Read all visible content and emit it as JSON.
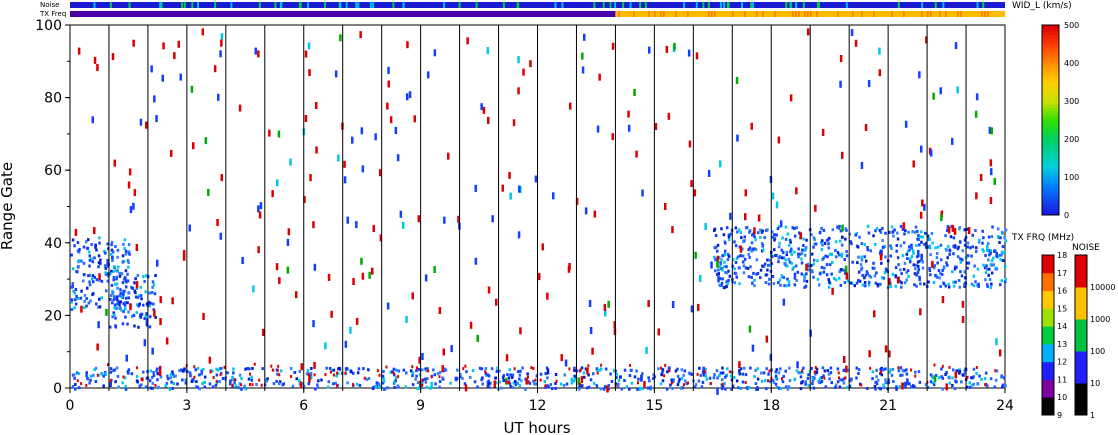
{
  "chart_data": {
    "type": "heatmap",
    "xlabel": "UT hours",
    "ylabel": "Range Gate",
    "xlim": [
      0,
      24
    ],
    "ylim": [
      0,
      100
    ],
    "x_ticks": [
      "0",
      "3",
      "6",
      "9",
      "12",
      "15",
      "18",
      "21",
      "24"
    ],
    "y_ticks": [
      "0",
      "20",
      "40",
      "60",
      "80",
      "100"
    ],
    "hour_gridlines": [
      1,
      2,
      3,
      4,
      5,
      6,
      7,
      8,
      9,
      10,
      11,
      12,
      13,
      14,
      15,
      16,
      17,
      18,
      19,
      20,
      21,
      22,
      23
    ],
    "strip_labels": {
      "noise": "Noise",
      "txfreq": "TX Freq"
    },
    "txfreq_change_hour": 14,
    "txfreq_colors": {
      "before": "#4a00a8",
      "after": "#ffbb00"
    },
    "scatter_regions": [
      {
        "x": [
          0,
          1.5
        ],
        "y": [
          22,
          42
        ],
        "color": "#1040ff",
        "density": "high"
      },
      {
        "x": [
          1,
          2.2
        ],
        "y": [
          17,
          32
        ],
        "color": "#1040ff",
        "density": "high"
      },
      {
        "x": [
          0,
          24
        ],
        "y": [
          0,
          6
        ],
        "color": "#1040ff",
        "density": "high"
      },
      {
        "x": [
          16.5,
          24
        ],
        "y": [
          28,
          45
        ],
        "color": "#1040ff",
        "density": "high"
      },
      {
        "x": [
          0,
          24
        ],
        "y": [
          0,
          100
        ],
        "color": "#dd0000",
        "density": "sparse"
      }
    ],
    "colorbars": [
      {
        "title": "WID_L (km/s)",
        "ticks": [
          "0",
          "100",
          "200",
          "300",
          "400",
          "500"
        ],
        "range": [
          0,
          500
        ]
      },
      {
        "title": "TX FRQ (MHz)",
        "ticks": [
          "9",
          "10",
          "11",
          "12",
          "13",
          "14",
          "15",
          "16",
          "17",
          "18"
        ],
        "range": [
          9,
          18
        ]
      },
      {
        "title": "NOISE",
        "ticks": [
          "1",
          "10",
          "100",
          "1000",
          "10000"
        ],
        "scale": "log"
      }
    ]
  }
}
